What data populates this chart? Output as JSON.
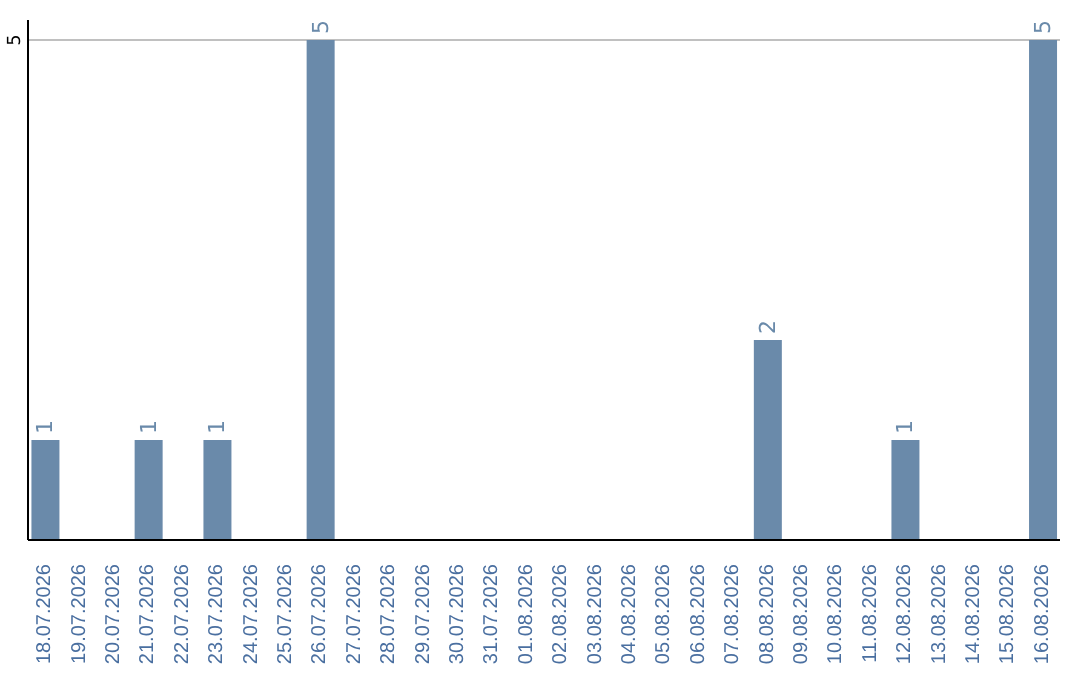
{
  "chart_data": {
    "type": "bar",
    "categories": [
      "18.07.2026",
      "19.07.2026",
      "20.07.2026",
      "21.07.2026",
      "22.07.2026",
      "23.07.2026",
      "24.07.2026",
      "25.07.2026",
      "26.07.2026",
      "27.07.2026",
      "28.07.2026",
      "29.07.2026",
      "30.07.2026",
      "31.07.2026",
      "01.08.2026",
      "02.08.2026",
      "03.08.2026",
      "04.08.2026",
      "05.08.2026",
      "06.08.2026",
      "07.08.2026",
      "08.08.2026",
      "09.08.2026",
      "10.08.2026",
      "11.08.2026",
      "12.08.2026",
      "13.08.2026",
      "14.08.2026",
      "15.08.2026",
      "16.08.2026"
    ],
    "values": [
      1,
      0,
      0,
      1,
      0,
      1,
      0,
      0,
      5,
      0,
      0,
      0,
      0,
      0,
      0,
      0,
      0,
      0,
      0,
      0,
      0,
      2,
      0,
      0,
      0,
      1,
      0,
      0,
      0,
      5
    ],
    "value_labels": [
      "1",
      null,
      null,
      "1",
      null,
      "1",
      null,
      null,
      "5",
      null,
      null,
      null,
      null,
      null,
      null,
      null,
      null,
      null,
      null,
      null,
      null,
      "2",
      null,
      null,
      null,
      "1",
      null,
      null,
      null,
      "5"
    ],
    "color": "#6a8aaa",
    "ylim": [
      0,
      5.2
    ],
    "yticks": [
      5
    ],
    "grid": "y"
  }
}
